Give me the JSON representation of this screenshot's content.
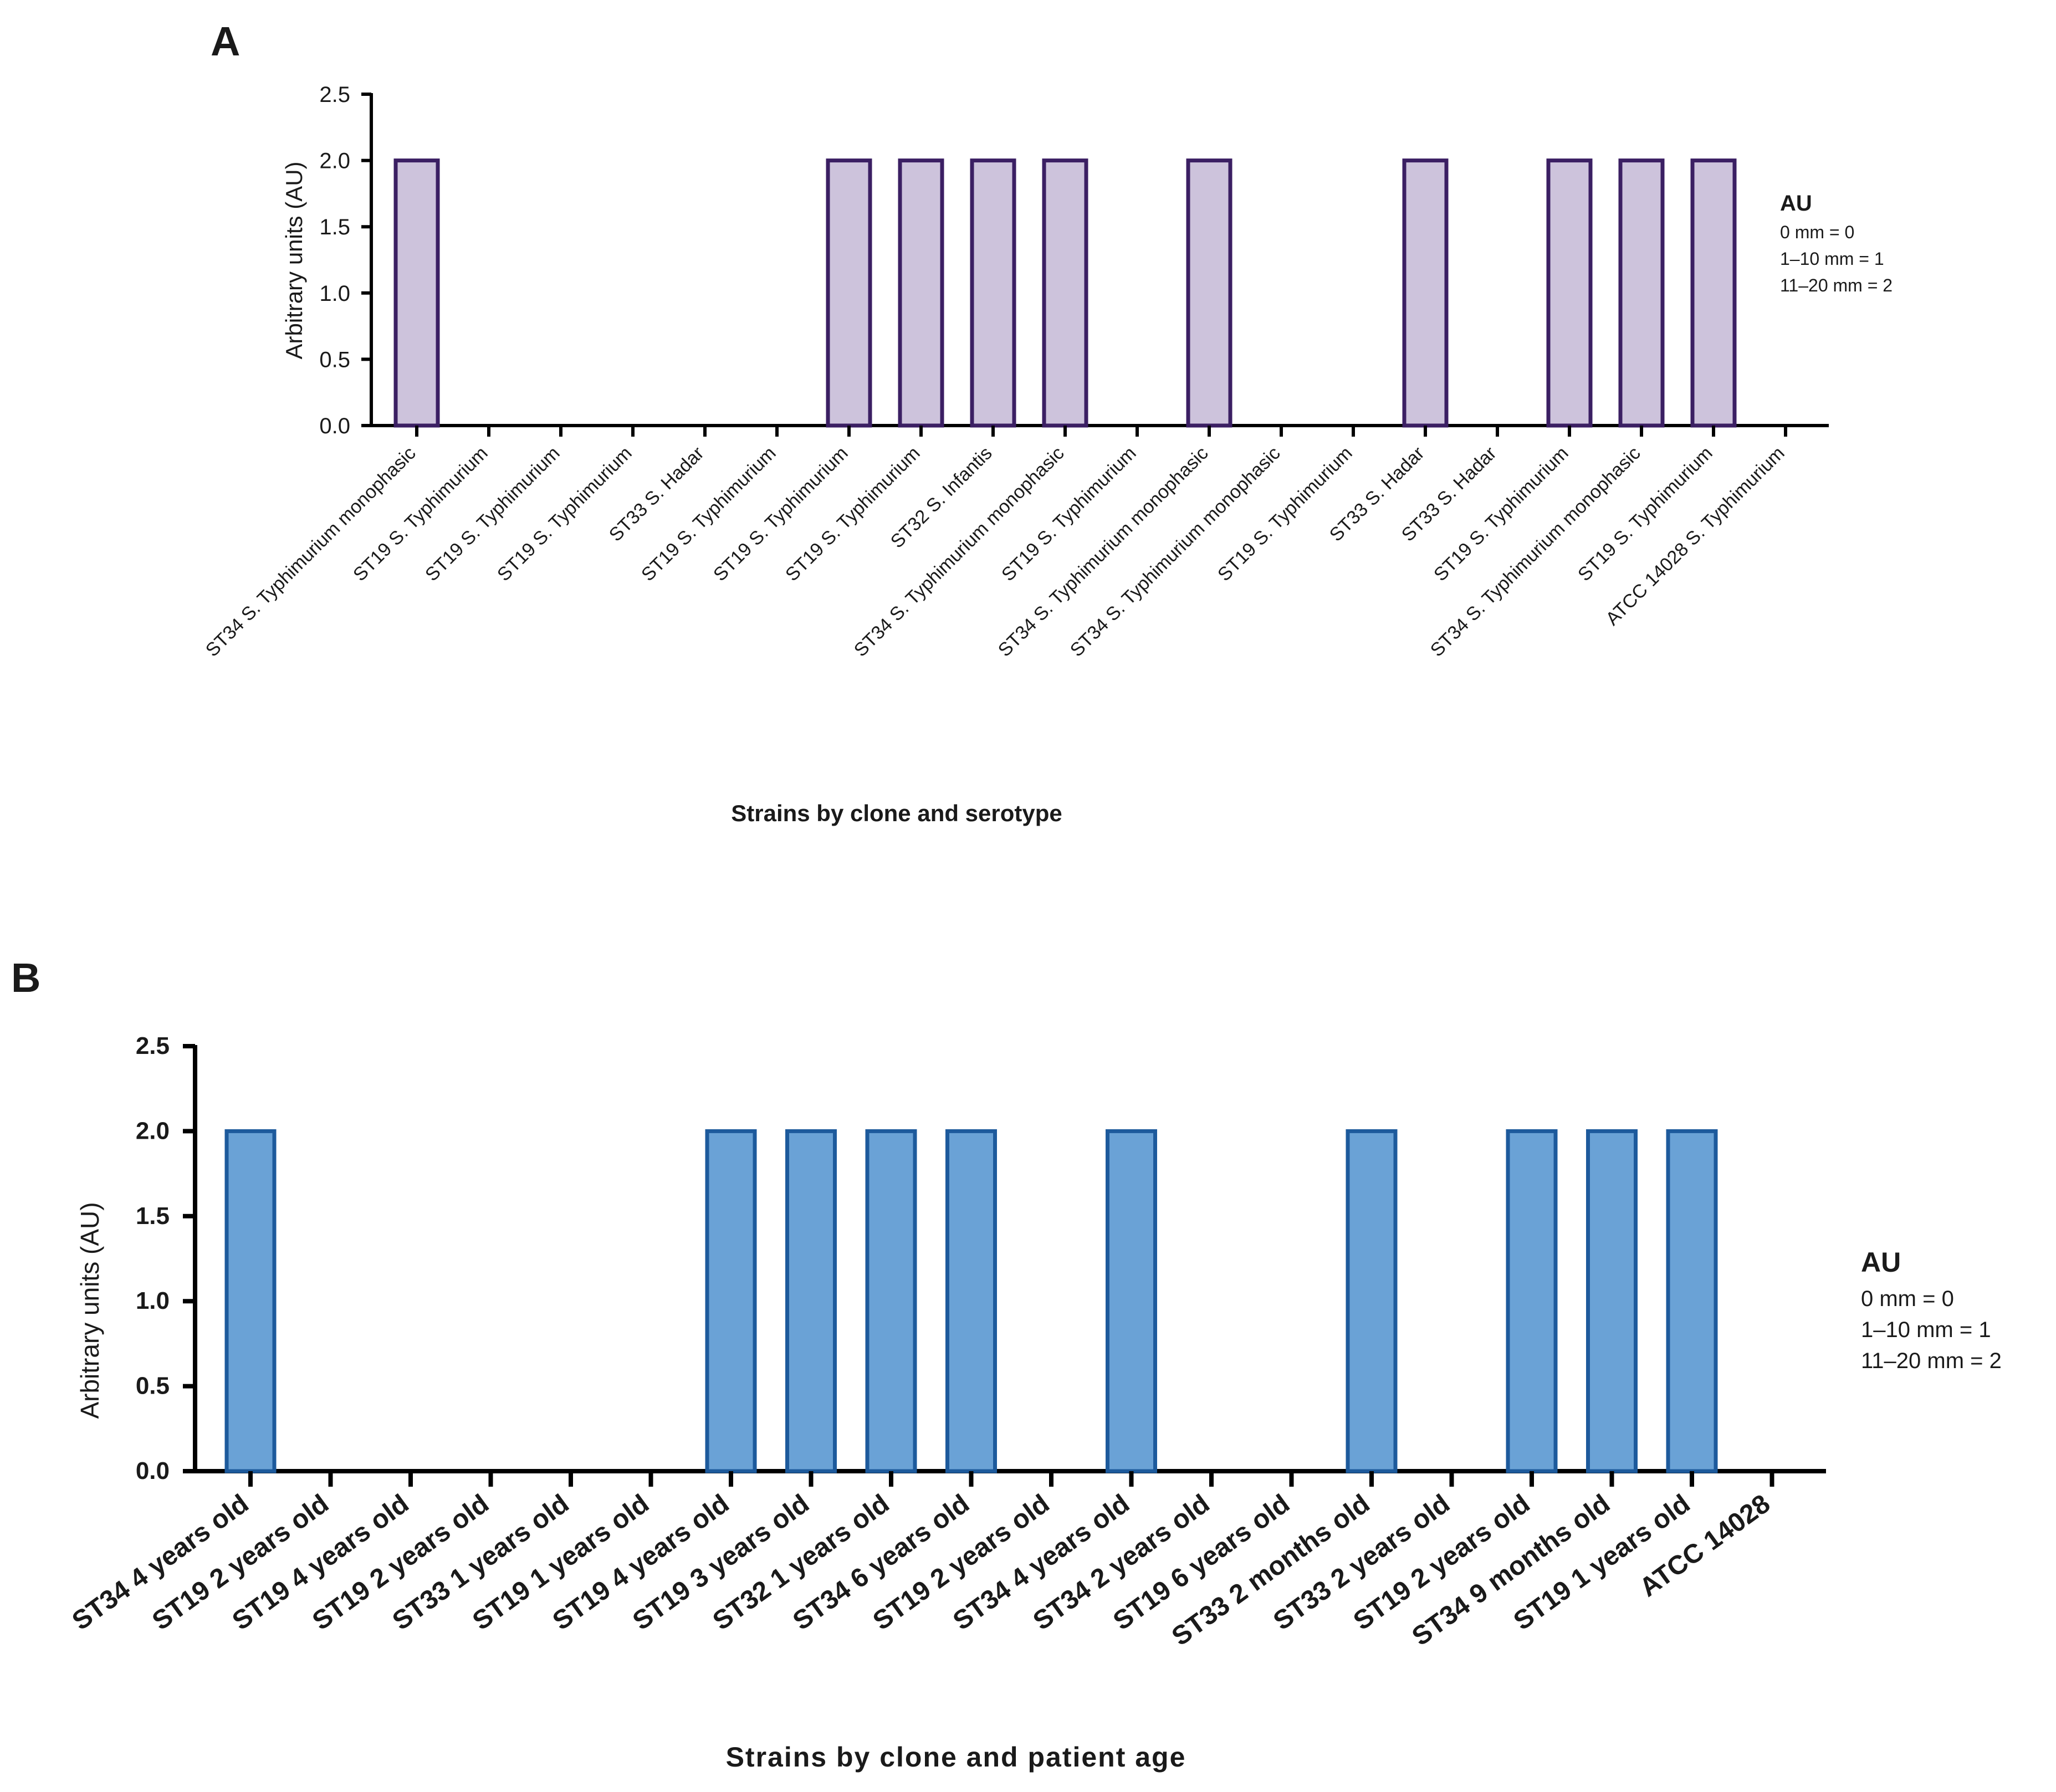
{
  "chart_data": [
    {
      "panel": "A",
      "type": "bar",
      "ylabel": "Arbitrary units (AU)",
      "xlabel": "Strains by clone and serotype",
      "ylim": [
        0,
        2.5
      ],
      "yticks": [
        "0.0",
        "0.5",
        "1.0",
        "1.5",
        "2.0",
        "2.5"
      ],
      "colors": {
        "fill": "#cdc3dc",
        "stroke": "#3b1f63"
      },
      "categories": [
        "ST34 S. Typhimurium monophasic",
        "ST19 S. Typhimurium",
        "ST19 S. Typhimurium",
        "ST19 S. Typhimurium",
        "ST33 S. Hadar",
        "ST19 S. Typhimurium",
        "ST19 S. Typhimurium",
        "ST19 S. Typhimurium",
        "ST32 S. Infantis",
        "ST34 S. Typhimurium monophasic",
        "ST19 S. Typhimurium",
        "ST34 S. Typhimurium monophasic",
        "ST34 S. Typhimurium monophasic",
        "ST19 S. Typhimurium",
        "ST33 S. Hadar",
        "ST33 S. Hadar",
        "ST19 S. Typhimurium",
        "ST34 S. Typhimurium monophasic",
        "ST19 S. Typhimurium",
        "ATCC 14028 S. Typhimurium"
      ],
      "values": [
        2,
        0,
        0,
        0,
        0,
        0,
        2,
        2,
        2,
        2,
        0,
        2,
        0,
        0,
        2,
        0,
        2,
        2,
        2,
        0
      ],
      "legend": {
        "title": "AU",
        "items": [
          "0 mm = 0",
          "1–10 mm = 1",
          "11–20 mm = 2"
        ]
      }
    },
    {
      "panel": "B",
      "type": "bar",
      "ylabel": "Arbitrary units (AU)",
      "xlabel": "Strains by clone and patient age",
      "ylim": [
        0,
        2.5
      ],
      "yticks": [
        "0.0",
        "0.5",
        "1.0",
        "1.5",
        "2.0",
        "2.5"
      ],
      "colors": {
        "fill": "#6aa2d6",
        "stroke": "#1d5a9c"
      },
      "categories": [
        "ST34 4 years old",
        "ST19 2 years old",
        "ST19 4 years old",
        "ST19 2 years old",
        "ST33 1 years old",
        "ST19 1 years old",
        "ST19 4 years old",
        "ST19 3 years old",
        "ST32 1 years old",
        "ST34 6 years old",
        "ST19 2 years old",
        "ST34 4 years old",
        "ST34 2 years old",
        "ST19 6 years old",
        "ST33 2 months old",
        "ST33 2 years old",
        "ST19 2 years old",
        "ST34 9 months old",
        "ST19 1 years old",
        "ATCC 14028"
      ],
      "values": [
        2,
        0,
        0,
        0,
        0,
        0,
        2,
        2,
        2,
        2,
        0,
        2,
        0,
        0,
        2,
        0,
        2,
        2,
        2,
        0
      ],
      "legend": {
        "title": "AU",
        "items": [
          "0 mm = 0",
          "1–10 mm = 1",
          "11–20 mm = 2"
        ]
      }
    }
  ]
}
